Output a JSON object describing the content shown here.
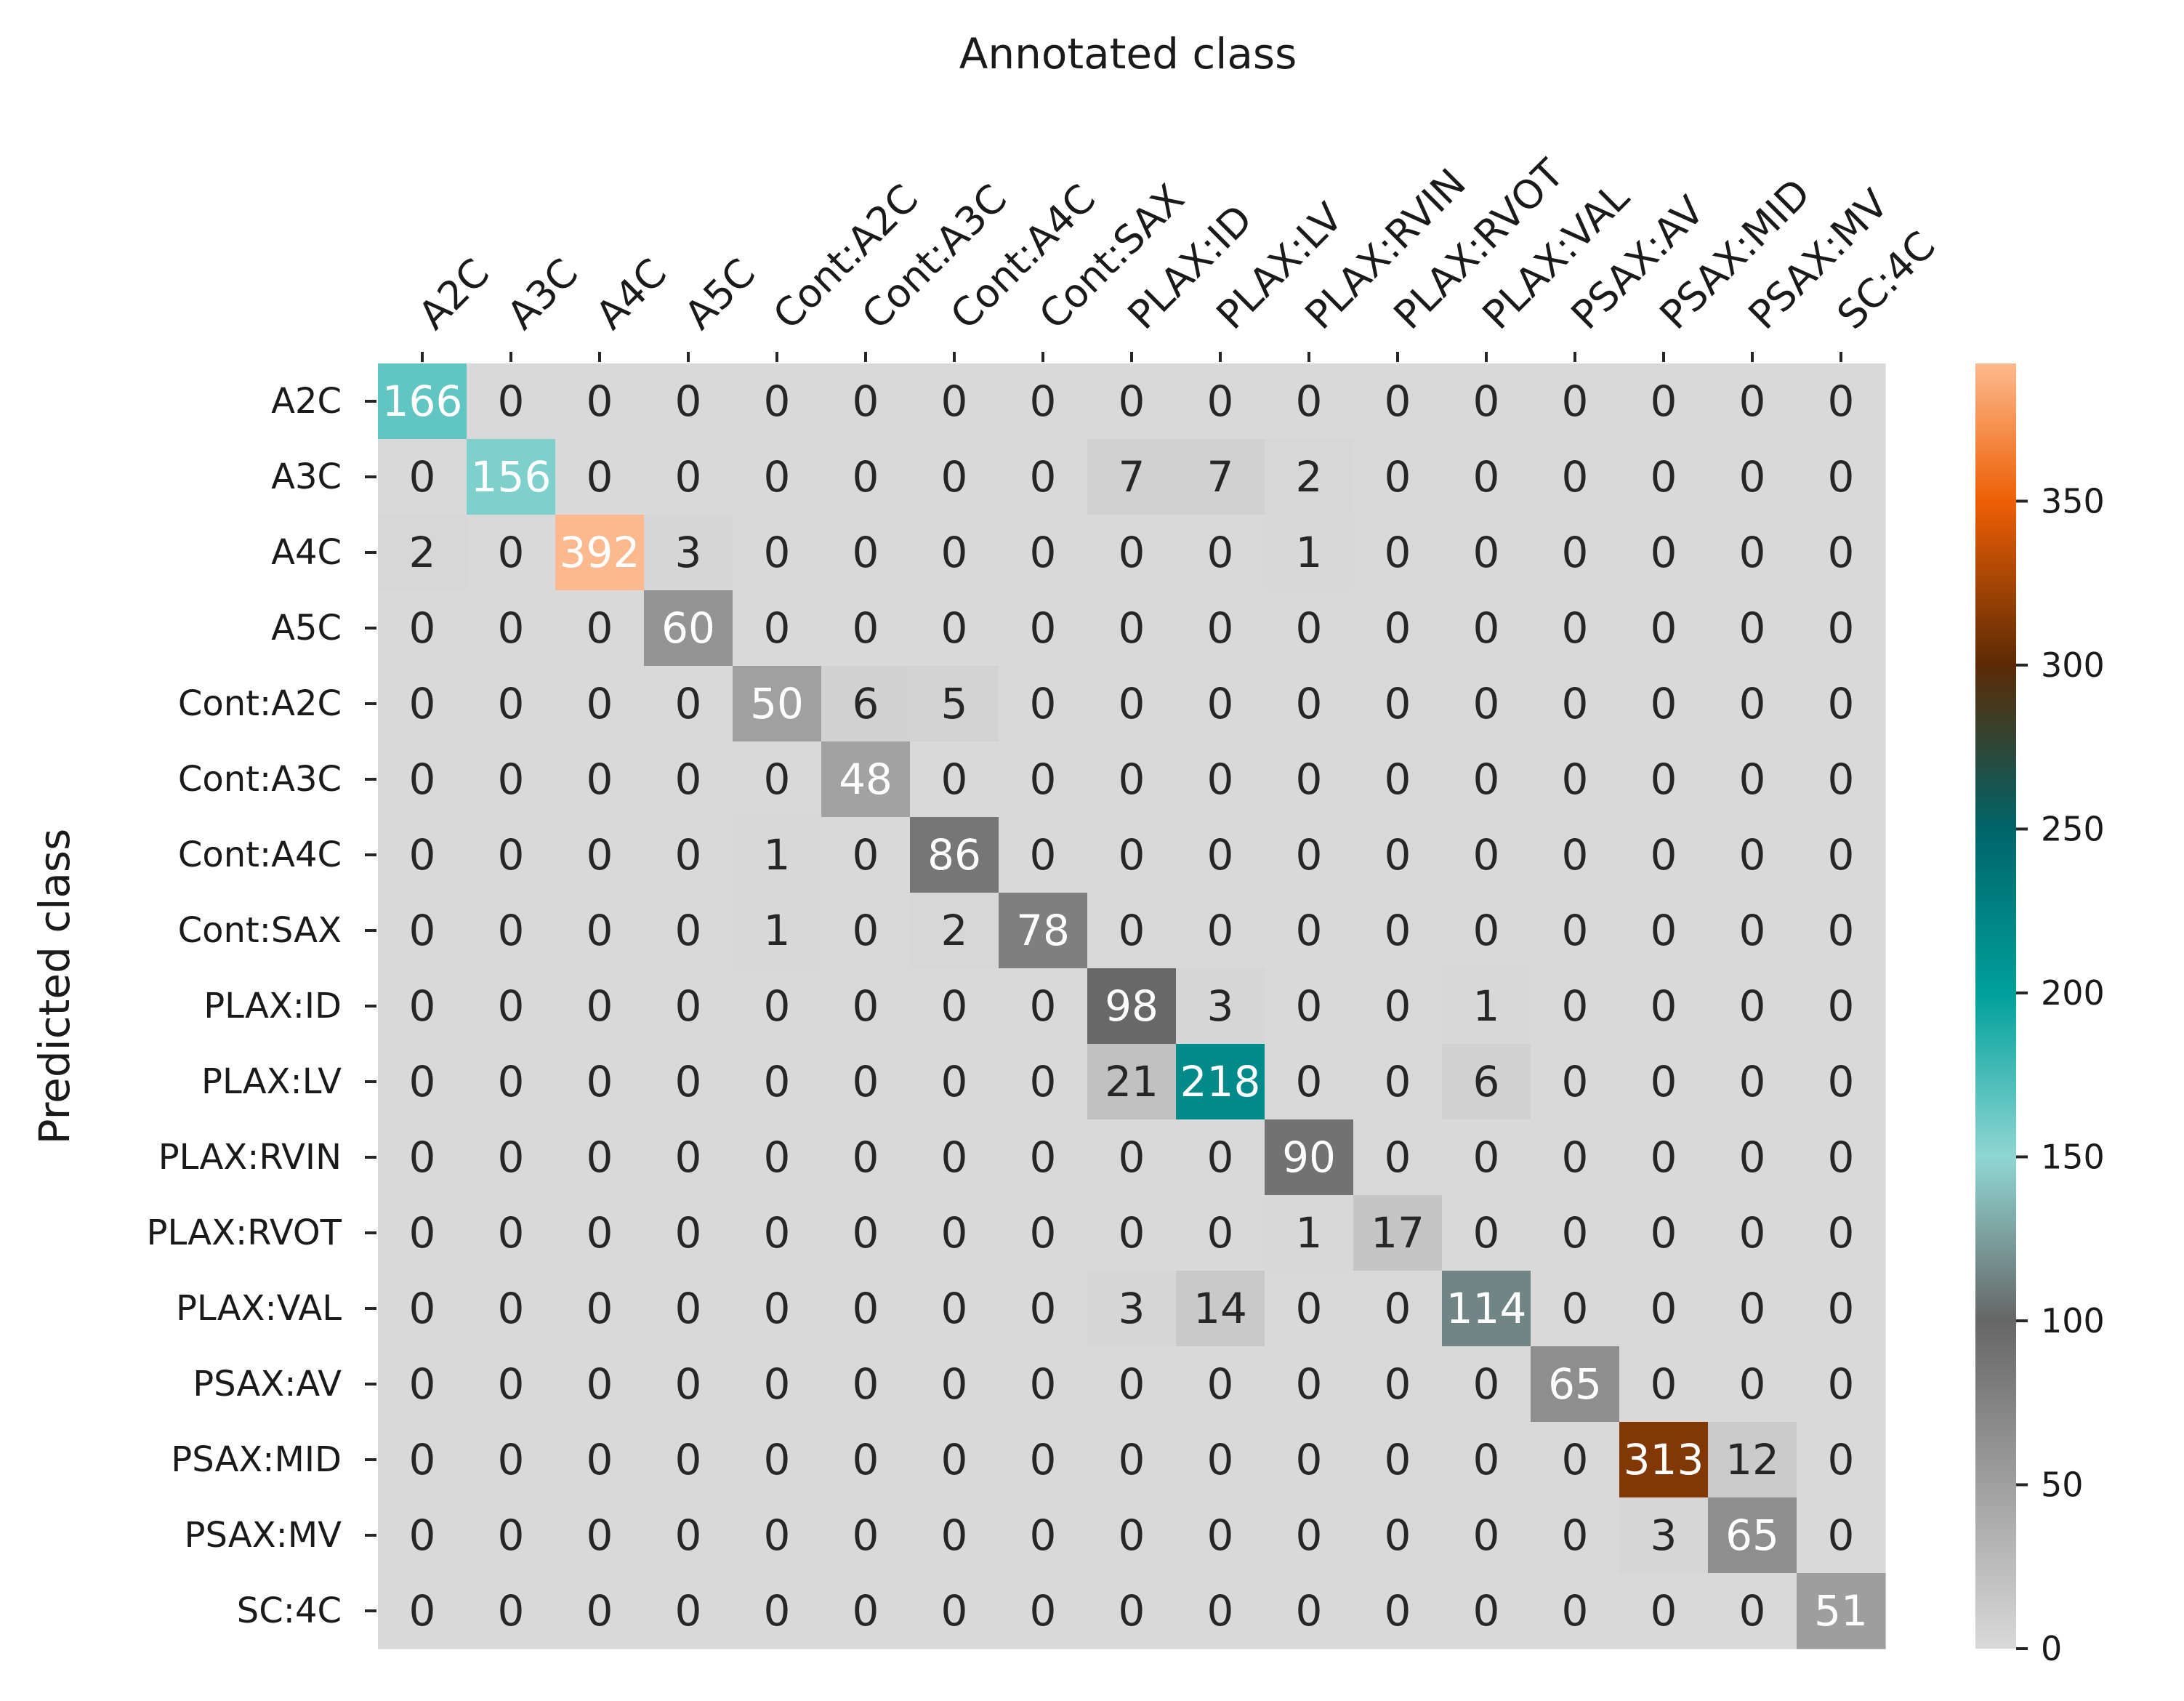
{
  "chart_data": {
    "type": "heatmap",
    "title": "",
    "xlabel": "Annotated class",
    "ylabel": "Predicted class",
    "x_categories": [
      "A2C",
      "A3C",
      "A4C",
      "A5C",
      "Cont:A2C",
      "Cont:A3C",
      "Cont:A4C",
      "Cont:SAX",
      "PLAX:ID",
      "PLAX:LV",
      "PLAX:RVIN",
      "PLAX:RVOT",
      "PLAX:VAL",
      "PSAX:AV",
      "PSAX:MID",
      "PSAX:MV",
      "SC:4C"
    ],
    "y_categories": [
      "A2C",
      "A3C",
      "A4C",
      "A5C",
      "Cont:A2C",
      "Cont:A3C",
      "Cont:A4C",
      "Cont:SAX",
      "PLAX:ID",
      "PLAX:LV",
      "PLAX:RVIN",
      "PLAX:RVOT",
      "PLAX:VAL",
      "PSAX:AV",
      "PSAX:MID",
      "PSAX:MV",
      "SC:4C"
    ],
    "matrix": [
      [
        166,
        0,
        0,
        0,
        0,
        0,
        0,
        0,
        0,
        0,
        0,
        0,
        0,
        0,
        0,
        0,
        0
      ],
      [
        0,
        156,
        0,
        0,
        0,
        0,
        0,
        0,
        7,
        7,
        2,
        0,
        0,
        0,
        0,
        0,
        0
      ],
      [
        2,
        0,
        392,
        3,
        0,
        0,
        0,
        0,
        0,
        0,
        1,
        0,
        0,
        0,
        0,
        0,
        0
      ],
      [
        0,
        0,
        0,
        60,
        0,
        0,
        0,
        0,
        0,
        0,
        0,
        0,
        0,
        0,
        0,
        0,
        0
      ],
      [
        0,
        0,
        0,
        0,
        50,
        6,
        5,
        0,
        0,
        0,
        0,
        0,
        0,
        0,
        0,
        0,
        0
      ],
      [
        0,
        0,
        0,
        0,
        0,
        48,
        0,
        0,
        0,
        0,
        0,
        0,
        0,
        0,
        0,
        0,
        0
      ],
      [
        0,
        0,
        0,
        0,
        1,
        0,
        86,
        0,
        0,
        0,
        0,
        0,
        0,
        0,
        0,
        0,
        0
      ],
      [
        0,
        0,
        0,
        0,
        1,
        0,
        2,
        78,
        0,
        0,
        0,
        0,
        0,
        0,
        0,
        0,
        0
      ],
      [
        0,
        0,
        0,
        0,
        0,
        0,
        0,
        0,
        98,
        3,
        0,
        0,
        1,
        0,
        0,
        0,
        0
      ],
      [
        0,
        0,
        0,
        0,
        0,
        0,
        0,
        0,
        21,
        218,
        0,
        0,
        6,
        0,
        0,
        0,
        0
      ],
      [
        0,
        0,
        0,
        0,
        0,
        0,
        0,
        0,
        0,
        0,
        90,
        0,
        0,
        0,
        0,
        0,
        0
      ],
      [
        0,
        0,
        0,
        0,
        0,
        0,
        0,
        0,
        0,
        0,
        1,
        17,
        0,
        0,
        0,
        0,
        0
      ],
      [
        0,
        0,
        0,
        0,
        0,
        0,
        0,
        0,
        3,
        14,
        0,
        0,
        114,
        0,
        0,
        0,
        0
      ],
      [
        0,
        0,
        0,
        0,
        0,
        0,
        0,
        0,
        0,
        0,
        0,
        0,
        0,
        65,
        0,
        0,
        0
      ],
      [
        0,
        0,
        0,
        0,
        0,
        0,
        0,
        0,
        0,
        0,
        0,
        0,
        0,
        0,
        313,
        12,
        0
      ],
      [
        0,
        0,
        0,
        0,
        0,
        0,
        0,
        0,
        0,
        0,
        0,
        0,
        0,
        0,
        3,
        65,
        0
      ],
      [
        0,
        0,
        0,
        0,
        0,
        0,
        0,
        0,
        0,
        0,
        0,
        0,
        0,
        0,
        0,
        0,
        51
      ]
    ],
    "colorbar": {
      "vmin": 0,
      "vmax": 392,
      "ticks": [
        0,
        50,
        100,
        150,
        200,
        250,
        300,
        350
      ],
      "stops": [
        {
          "value": 0,
          "color": "#d9d9d9"
        },
        {
          "value": 100,
          "color": "#666666"
        },
        {
          "value": 150,
          "color": "#8fd6d3"
        },
        {
          "value": 200,
          "color": "#00a09b"
        },
        {
          "value": 250,
          "color": "#00646a"
        },
        {
          "value": 300,
          "color": "#5c2a05"
        },
        {
          "value": 350,
          "color": "#ee5f05"
        },
        {
          "value": 392,
          "color": "#fdb98e"
        }
      ]
    }
  }
}
